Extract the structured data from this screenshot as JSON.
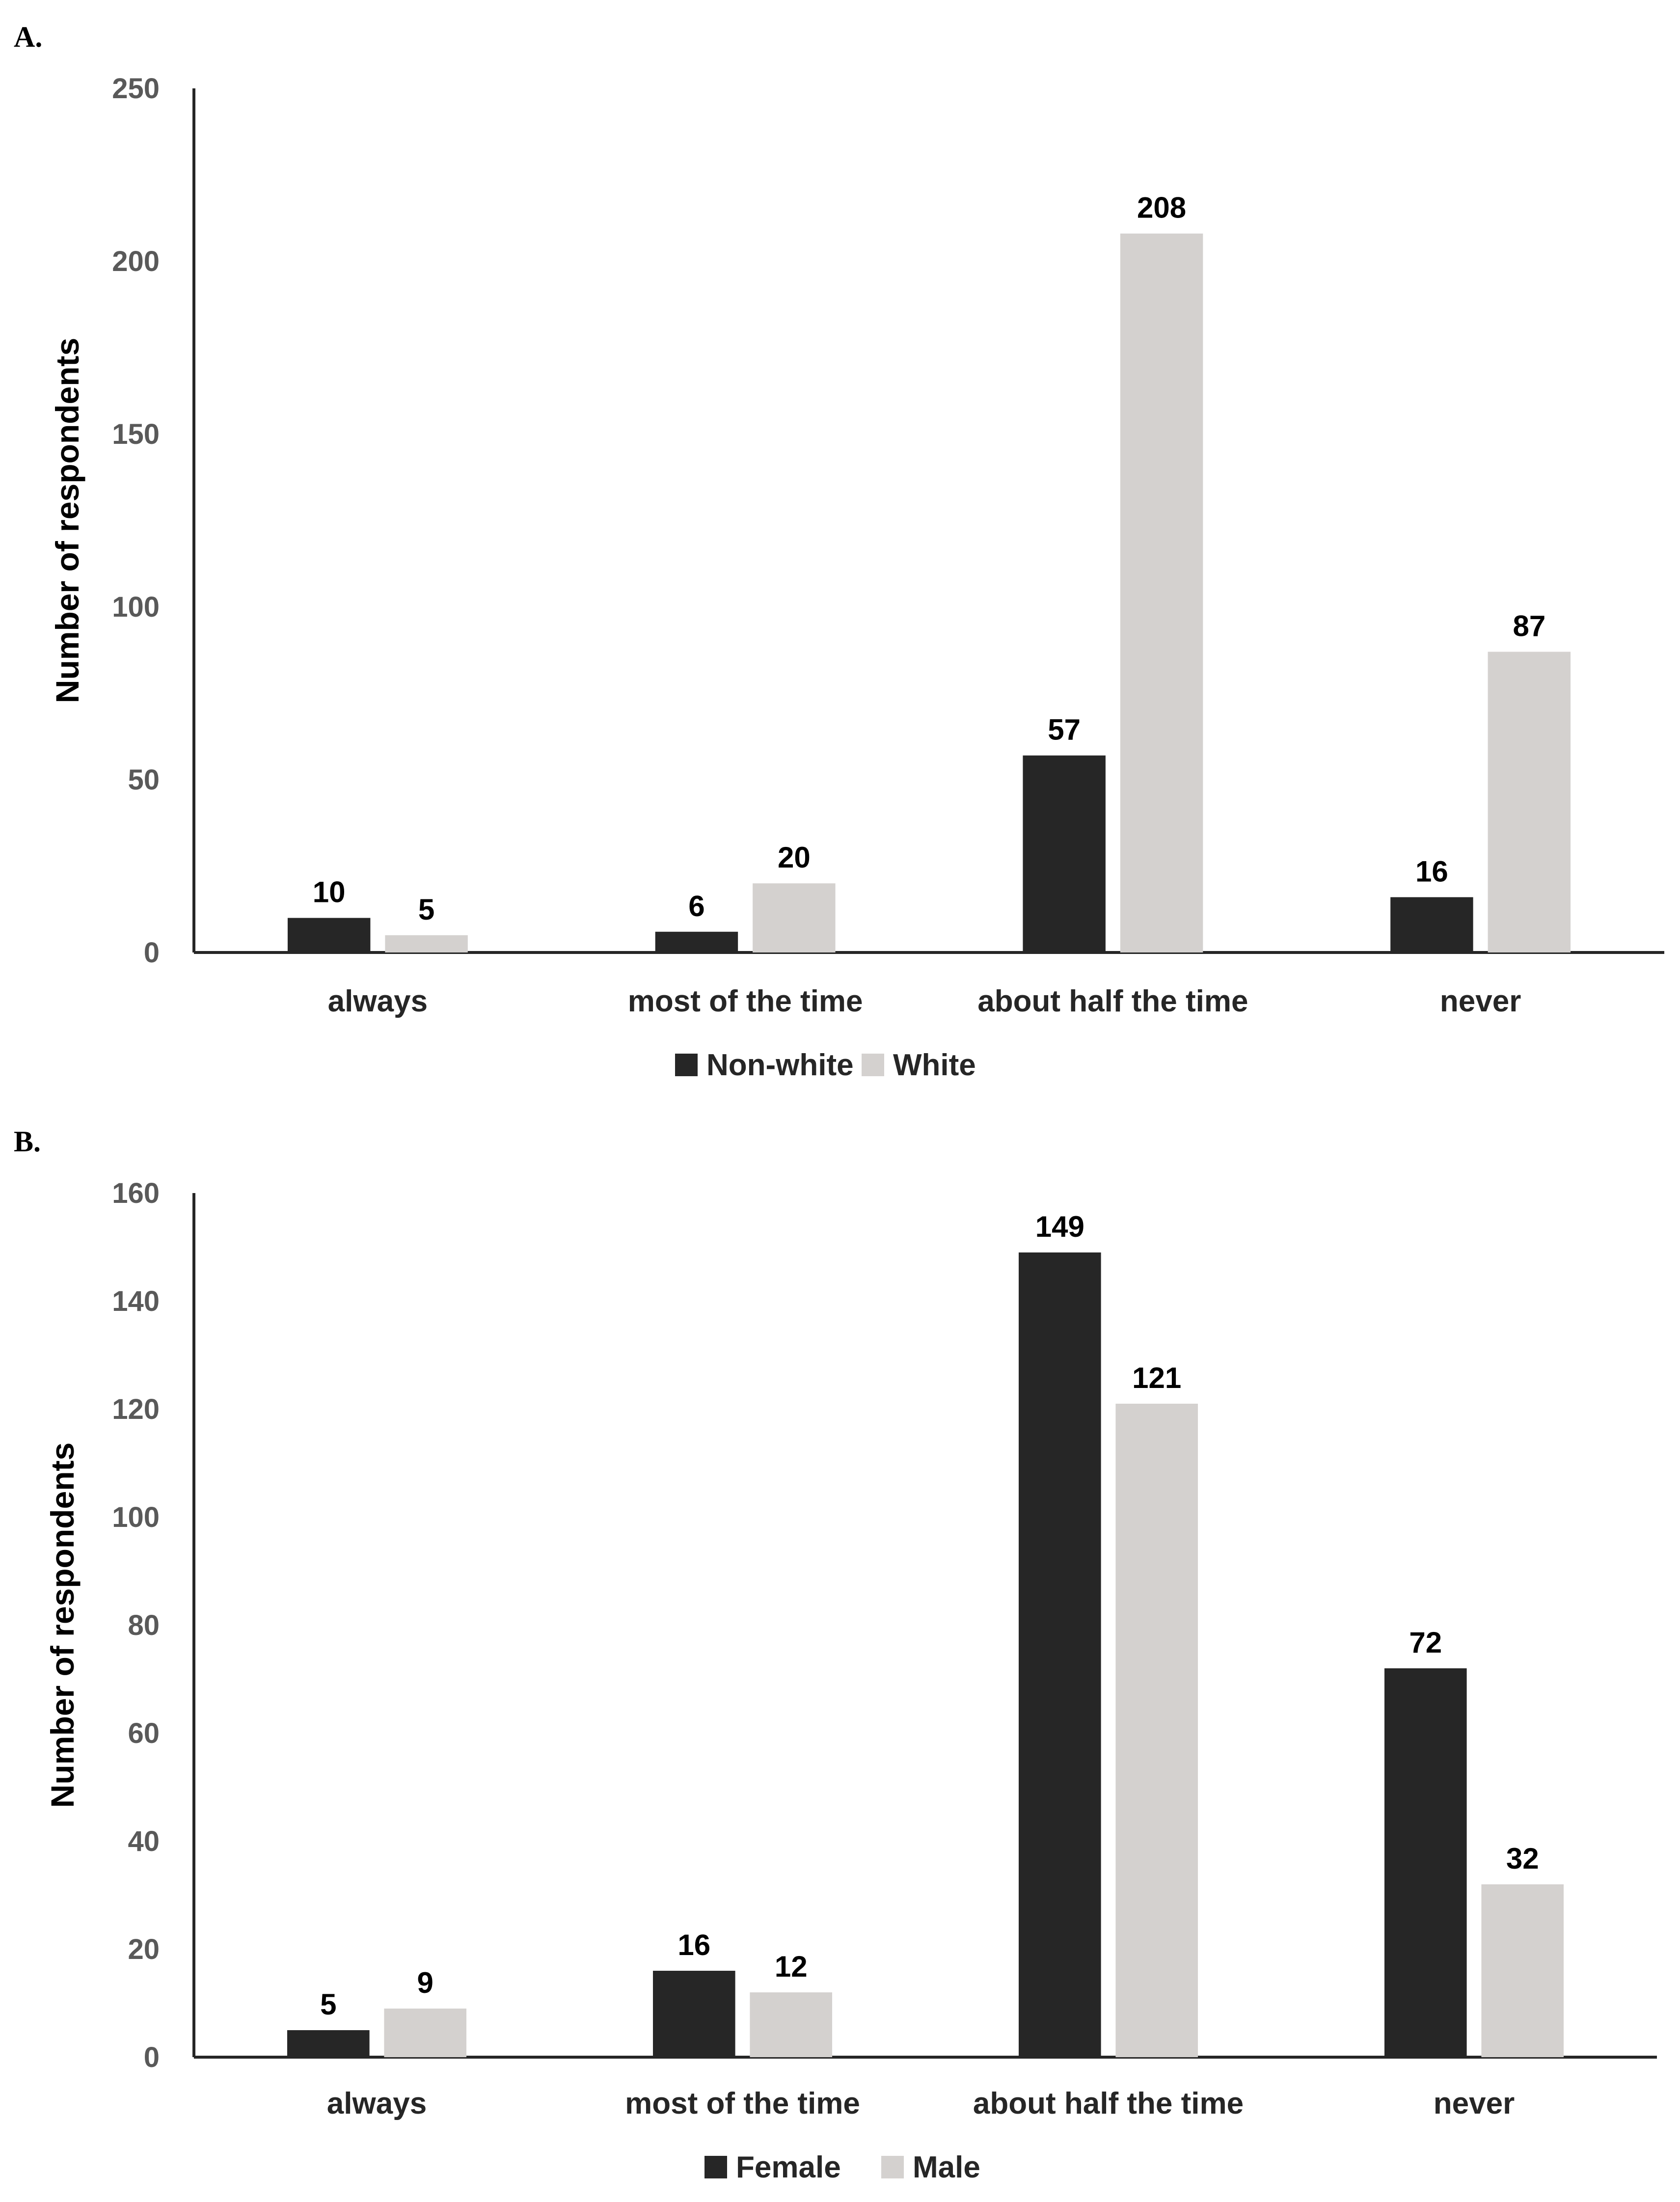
{
  "colors": {
    "series1": "#262626",
    "series2": "#d4d1cf",
    "axis": "#262626"
  },
  "chart_data": [
    {
      "panel": "A.",
      "type": "bar",
      "ylabel": "Number of respondents",
      "ylim": [
        0,
        250
      ],
      "yticks": [
        0,
        50,
        100,
        150,
        200,
        250
      ],
      "grid": false,
      "legend_position": "bottom",
      "categories": [
        "always",
        "most of the time",
        "about half the time",
        "never"
      ],
      "series": [
        {
          "name": "Non-white",
          "values": [
            10,
            6,
            57,
            16
          ]
        },
        {
          "name": "White",
          "values": [
            5,
            20,
            208,
            87
          ]
        }
      ]
    },
    {
      "panel": "B.",
      "type": "bar",
      "ylabel": "Number of respondents",
      "ylim": [
        0,
        160
      ],
      "yticks": [
        0,
        20,
        40,
        60,
        80,
        100,
        120,
        140,
        160
      ],
      "grid": false,
      "legend_position": "bottom",
      "categories": [
        "always",
        "most of the time",
        "about half the time",
        "never"
      ],
      "series": [
        {
          "name": "Female",
          "values": [
            5,
            16,
            149,
            72
          ]
        },
        {
          "name": "Male",
          "values": [
            9,
            12,
            121,
            32
          ]
        }
      ]
    }
  ]
}
